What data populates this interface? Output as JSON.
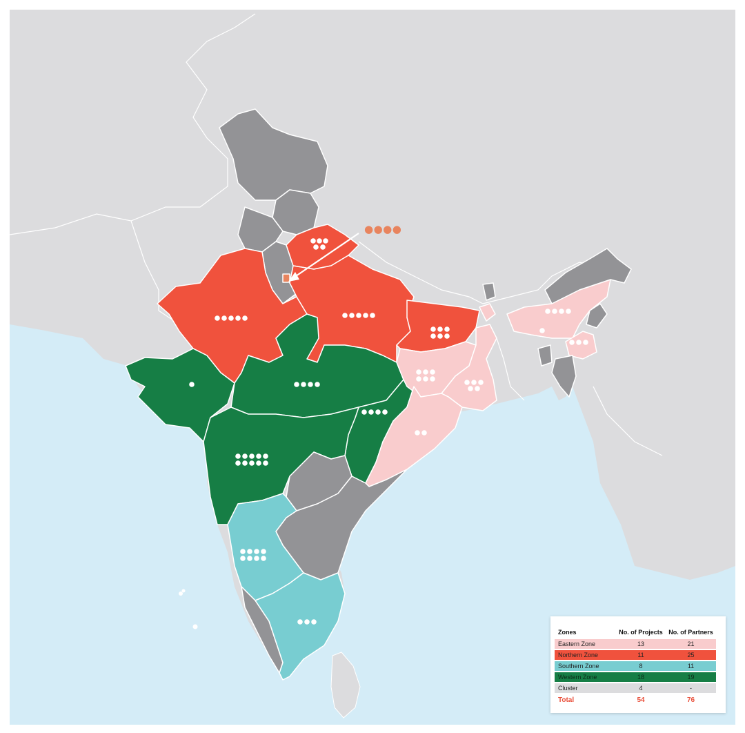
{
  "colors": {
    "background_frame": "#ffffff",
    "sea": "#d4ecf7",
    "land_neighbors": "#dcdcde",
    "cluster_gray": "#939396",
    "eastern": "#f9cccd",
    "northern": "#f0523d",
    "southern": "#78cdd1",
    "western": "#167e45",
    "callout_dots": "#e8845e"
  },
  "callout": {
    "marker": "●●●●"
  },
  "states": [
    {
      "name": "Jammu & Kashmir",
      "zone": "cluster",
      "dots": 0
    },
    {
      "name": "Himachal Pradesh",
      "zone": "cluster",
      "dots": 0
    },
    {
      "name": "Punjab",
      "zone": "cluster",
      "dots": 0
    },
    {
      "name": "Haryana",
      "zone": "cluster",
      "dots": 0
    },
    {
      "name": "Delhi",
      "zone": "northern",
      "dots": 4
    },
    {
      "name": "Uttarakhand",
      "zone": "northern",
      "dots": 5
    },
    {
      "name": "Rajasthan",
      "zone": "northern",
      "dots": 5
    },
    {
      "name": "Uttar Pradesh",
      "zone": "northern",
      "dots": 5
    },
    {
      "name": "Bihar",
      "zone": "northern",
      "dots": 6
    },
    {
      "name": "Gujarat",
      "zone": "western",
      "dots": 1
    },
    {
      "name": "Madhya Pradesh",
      "zone": "western",
      "dots": 4
    },
    {
      "name": "Chhattisgarh",
      "zone": "western",
      "dots": 4
    },
    {
      "name": "Maharashtra",
      "zone": "western",
      "dots": 10
    },
    {
      "name": "Jharkhand",
      "zone": "eastern",
      "dots": 6
    },
    {
      "name": "West Bengal",
      "zone": "eastern",
      "dots": 5
    },
    {
      "name": "Odisha",
      "zone": "eastern",
      "dots": 2
    },
    {
      "name": "Assam",
      "zone": "eastern",
      "dots": 5
    },
    {
      "name": "Manipur",
      "zone": "eastern",
      "dots": 3
    },
    {
      "name": "Telangana",
      "zone": "cluster",
      "dots": 0
    },
    {
      "name": "Andhra Pradesh",
      "zone": "cluster",
      "dots": 0
    },
    {
      "name": "Karnataka",
      "zone": "southern",
      "dots": 8
    },
    {
      "name": "Kerala",
      "zone": "cluster",
      "dots": 0
    },
    {
      "name": "Tamil Nadu",
      "zone": "southern",
      "dots": 3
    }
  ],
  "legend": {
    "headers": {
      "zones": "Zones",
      "projects": "No. of Projects",
      "partners": "No. of Partners"
    },
    "rows": [
      {
        "zone": "Eastern Zone",
        "projects": "13",
        "partners": "21",
        "color": "#f9cccd"
      },
      {
        "zone": "Northern Zone",
        "projects": "11",
        "partners": "25",
        "color": "#f0523d"
      },
      {
        "zone": "Southern Zone",
        "projects": "8",
        "partners": "11",
        "color": "#78cdd1"
      },
      {
        "zone": "Western Zone",
        "projects": "18",
        "partners": "19",
        "color": "#167e45"
      },
      {
        "zone": "Cluster",
        "projects": "4",
        "partners": "-",
        "color": "#dcdcde"
      }
    ],
    "total": {
      "label": "Total",
      "projects": "54",
      "partners": "76"
    }
  }
}
